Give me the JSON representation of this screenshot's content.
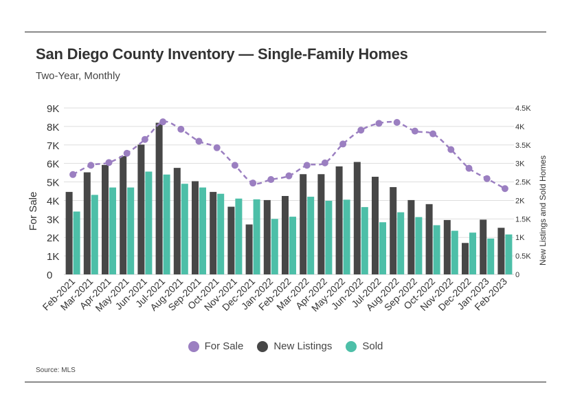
{
  "header": {
    "title": "San Diego County Inventory — Single-Family Homes",
    "subtitle": "Two-Year, Monthly"
  },
  "footer": {
    "source": "Source: MLS"
  },
  "colors": {
    "for_sale": "#9b7fc1",
    "new_listings": "#474747",
    "sold": "#4dbfa8",
    "grid": "#dddddd",
    "text": "#333333"
  },
  "chart_data": {
    "type": "bar",
    "title": "San Diego County Inventory — Single-Family Homes",
    "subtitle": "Two-Year, Monthly",
    "ylabel": "For Sale",
    "y2label": "New Listings and Sold Homes",
    "ylim": [
      0,
      9000
    ],
    "y2lim": [
      0,
      4500
    ],
    "yticks": [
      "0",
      "1K",
      "2K",
      "3K",
      "4K",
      "5K",
      "6K",
      "7K",
      "8K",
      "9K"
    ],
    "y2ticks": [
      "0",
      "0.5K",
      "1K",
      "1.5K",
      "2K",
      "2.5K",
      "3K",
      "3.5K",
      "4K",
      "4.5K"
    ],
    "grid": true,
    "legend_position": "bottom",
    "categories": [
      "Feb-2021",
      "Mar-2021",
      "Apr-2021",
      "May-2021",
      "Jun-2021",
      "Jul-2021",
      "Aug-2021",
      "Sep-2021",
      "Oct-2021",
      "Nov-2021",
      "Dec-2021",
      "Jan-2022",
      "Feb-2022",
      "Mar-2022",
      "Apr-2022",
      "May-2022",
      "Jun-2022",
      "Jul-2022",
      "Aug-2022",
      "Sep-2022",
      "Oct-2022",
      "Nov-2022",
      "Dec-2022",
      "Jan-2023",
      "Feb-2023"
    ],
    "series": [
      {
        "name": "For Sale",
        "type": "line",
        "axis": "left",
        "values": [
          5400,
          5900,
          6050,
          6550,
          7300,
          8250,
          7850,
          7200,
          6850,
          5900,
          4940,
          5130,
          5330,
          5900,
          6030,
          7050,
          7800,
          8170,
          8220,
          7750,
          7600,
          6750,
          5740,
          5180,
          4640
        ]
      },
      {
        "name": "New Listings",
        "type": "bar",
        "axis": "right",
        "values": [
          2230,
          2760,
          2960,
          3200,
          3510,
          4100,
          2880,
          2520,
          2230,
          1830,
          1350,
          2010,
          2120,
          2710,
          2710,
          2920,
          3040,
          2640,
          2360,
          2010,
          1900,
          1470,
          850,
          1480,
          1260
        ]
      },
      {
        "name": "Sold",
        "type": "bar",
        "axis": "right",
        "values": [
          1700,
          2150,
          2350,
          2350,
          2780,
          2700,
          2450,
          2350,
          2180,
          2050,
          2030,
          1500,
          1560,
          2100,
          1990,
          2020,
          1820,
          1410,
          1680,
          1550,
          1330,
          1180,
          1130,
          970,
          1080
        ]
      }
    ]
  },
  "legend": [
    {
      "label": "For Sale",
      "color_key": "for_sale"
    },
    {
      "label": "New Listings",
      "color_key": "new_listings"
    },
    {
      "label": "Sold",
      "color_key": "sold"
    }
  ]
}
